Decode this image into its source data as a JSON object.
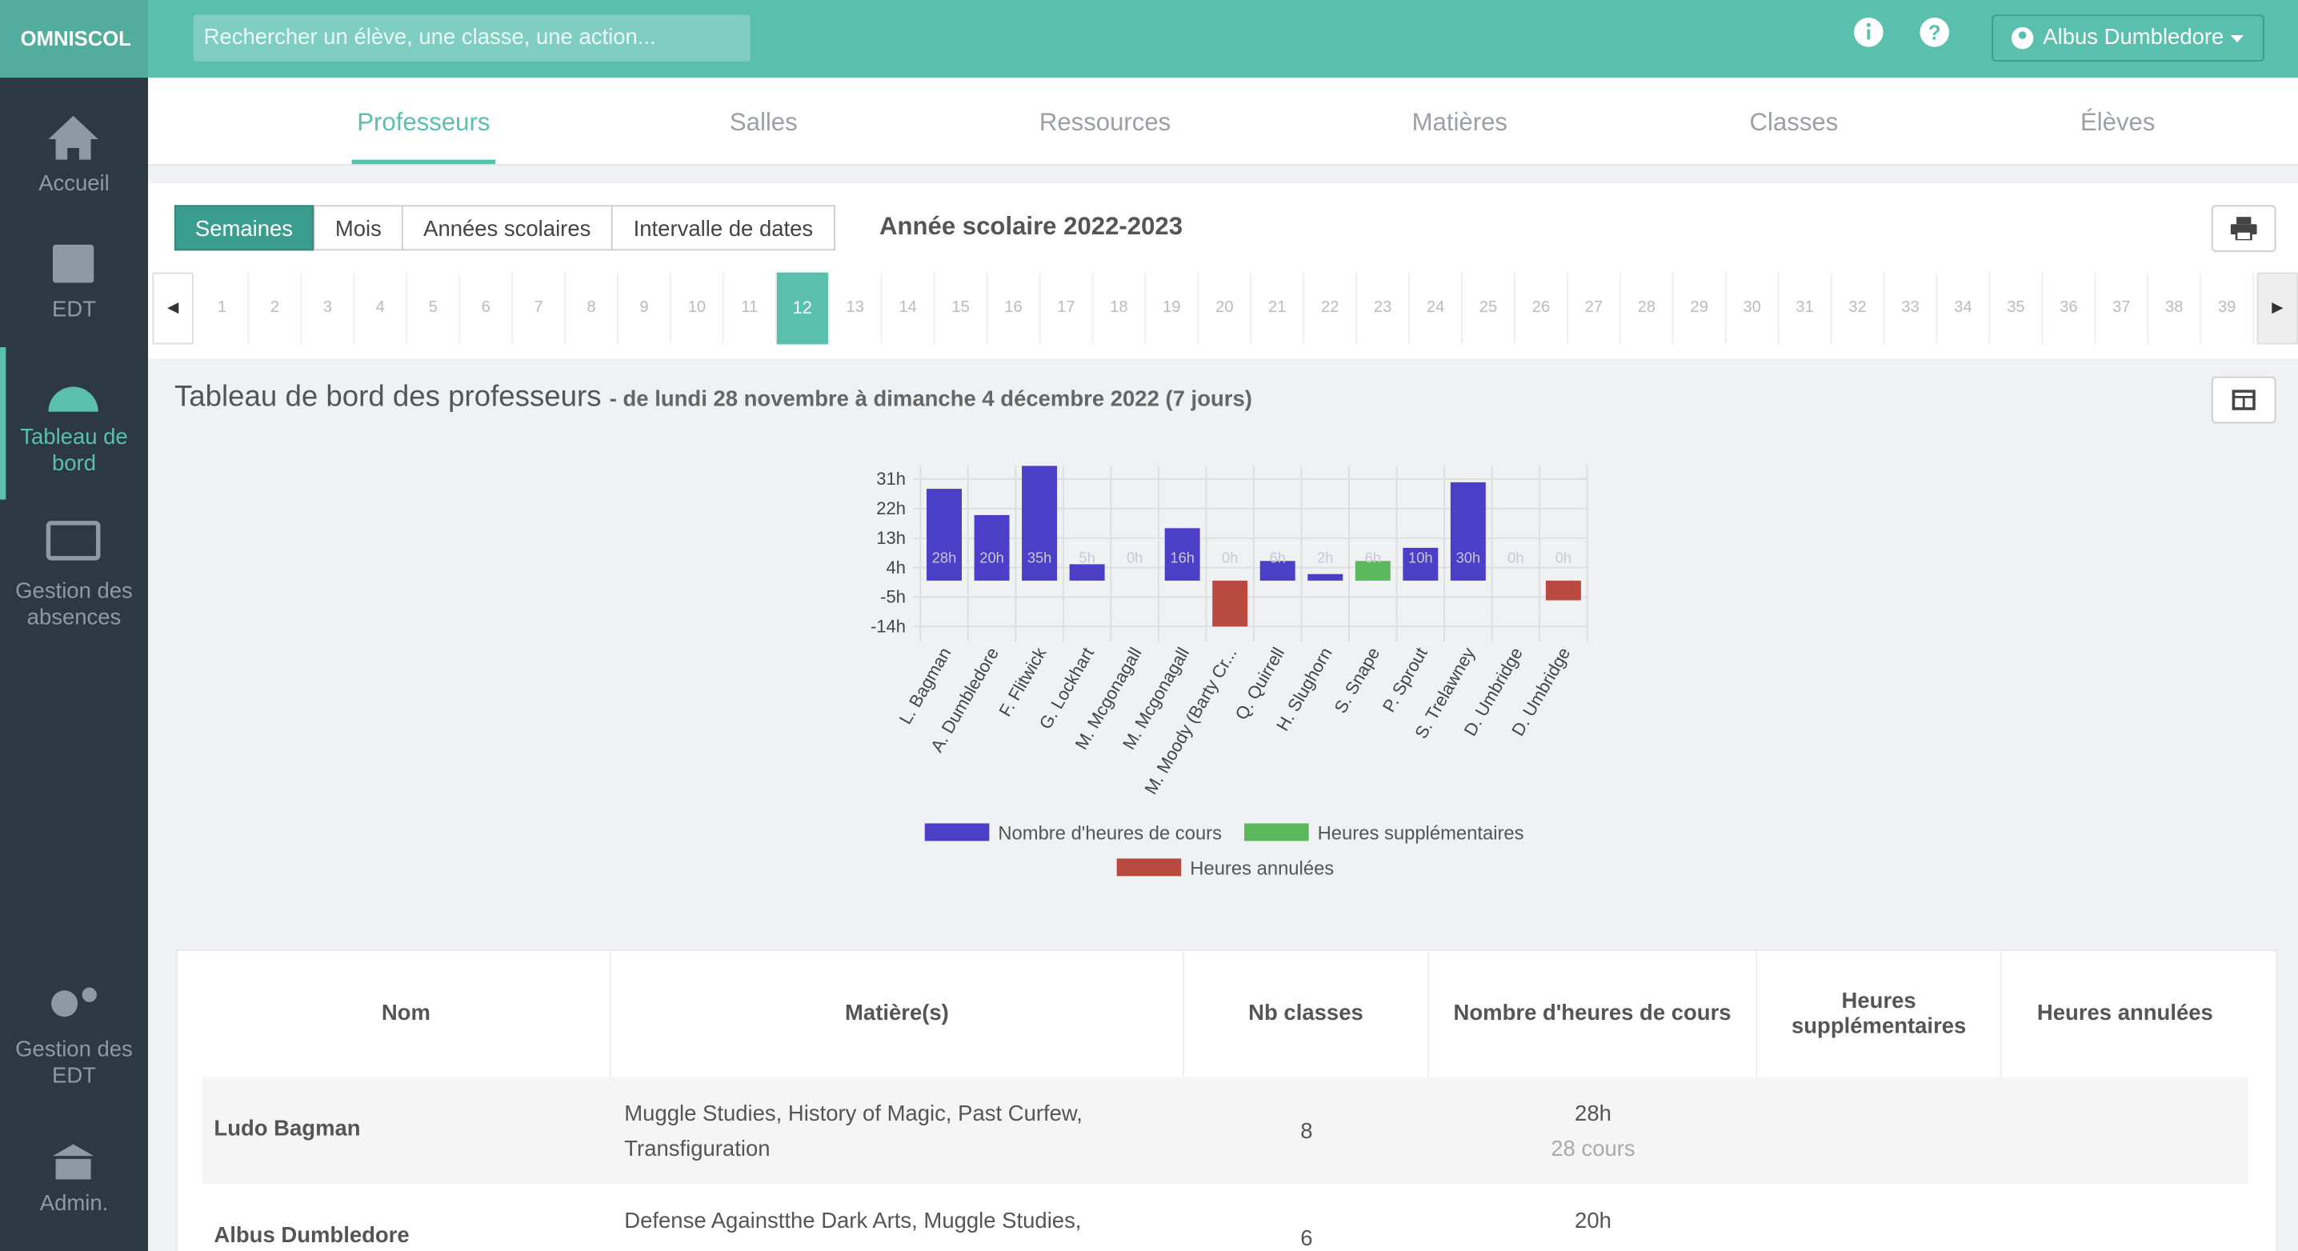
{
  "topbar": {
    "logo": "OMNISCOL",
    "search_placeholder": "Rechercher un élève, une classe, une action...",
    "user": "Albus Dumbledore"
  },
  "sidebar": [
    "Accueil",
    "EDT",
    "Tableau de bord",
    "Gestion des absences",
    "Gestion des EDT",
    "Admin."
  ],
  "tabs": [
    "Professeurs",
    "Salles",
    "Ressources",
    "Matières",
    "Classes",
    "Élèves"
  ],
  "period_buttons": [
    "Semaines",
    "Mois",
    "Années scolaires",
    "Intervalle de dates"
  ],
  "school_year": "Année scolaire 2022-2023",
  "weeks": [
    1,
    2,
    3,
    4,
    5,
    6,
    7,
    8,
    9,
    10,
    11,
    12,
    13,
    14,
    15,
    16,
    17,
    18,
    19,
    20,
    21,
    22,
    23,
    24,
    25,
    26,
    27,
    28,
    29,
    30,
    31,
    32,
    33,
    34,
    35,
    36,
    37,
    38,
    39
  ],
  "dashboard": {
    "title": "Tableau de bord des professeurs",
    "subtitle": "- de lundi 28 novembre à dimanche 4 décembre 2022 (7 jours)"
  },
  "chart_data": {
    "type": "bar",
    "categories": [
      "L. Bagman",
      "A. Dumbledore",
      "F. Flitwick",
      "G. Lockhart",
      "M. Mcgonagall",
      "M. Mcgonagall",
      "M. Moody (Barty Cr...",
      "Q. Quirrell",
      "H. Slughorn",
      "S. Snape",
      "P. Sprout",
      "S. Trelawney",
      "D. Umbridge",
      "D. Umbridge"
    ],
    "series": [
      {
        "name": "Nombre d'heures de cours",
        "color": "#4b3fc8",
        "values": [
          28,
          20,
          35,
          5,
          0,
          16,
          0,
          6,
          2,
          null,
          10,
          30,
          0,
          0
        ],
        "value_labels": [
          "28h",
          "20h",
          "35h",
          "5h",
          "0h",
          "16h",
          "0h",
          "6h",
          "2h",
          null,
          "10h",
          "30h",
          "0h",
          "0h"
        ]
      },
      {
        "name": "Heures supplémentaires",
        "color": "#5cb85c",
        "values": [
          null,
          null,
          null,
          null,
          null,
          null,
          null,
          null,
          null,
          6,
          null,
          null,
          null,
          null
        ],
        "value_labels": [
          null,
          null,
          null,
          null,
          null,
          null,
          null,
          null,
          null,
          "6h",
          null,
          null,
          null,
          null
        ]
      },
      {
        "name": "Heures annulées",
        "color": "#b94a3f",
        "values": [
          null,
          null,
          null,
          null,
          null,
          null,
          -14,
          null,
          null,
          null,
          null,
          null,
          null,
          -6
        ]
      }
    ],
    "ylim": [
      -16.4,
      35
    ],
    "yticks": [
      {
        "value": -14,
        "label": "-14h"
      },
      {
        "value": -5,
        "label": "-5h"
      },
      {
        "value": 4,
        "label": "4h"
      },
      {
        "value": 13,
        "label": "13h"
      },
      {
        "value": 22,
        "label": "22h"
      },
      {
        "value": 31,
        "label": "31h"
      }
    ],
    "grid": true
  },
  "table": {
    "headers": [
      "Nom",
      "Matière(s)",
      "Nb classes",
      "Nombre d'heures de cours",
      "Heures supplémentaires",
      "Heures annulées"
    ],
    "rows": [
      {
        "name": "Ludo Bagman",
        "subjects": "Muggle Studies, History of Magic, Past Curfew, Transfiguration",
        "classes": 8,
        "hours": "28h",
        "courses": "28 cours"
      },
      {
        "name": "Albus Dumbledore",
        "subjects": "Defense Againstthe Dark Arts, Muggle Studies,",
        "classes": 6,
        "hours": "20h"
      }
    ]
  }
}
